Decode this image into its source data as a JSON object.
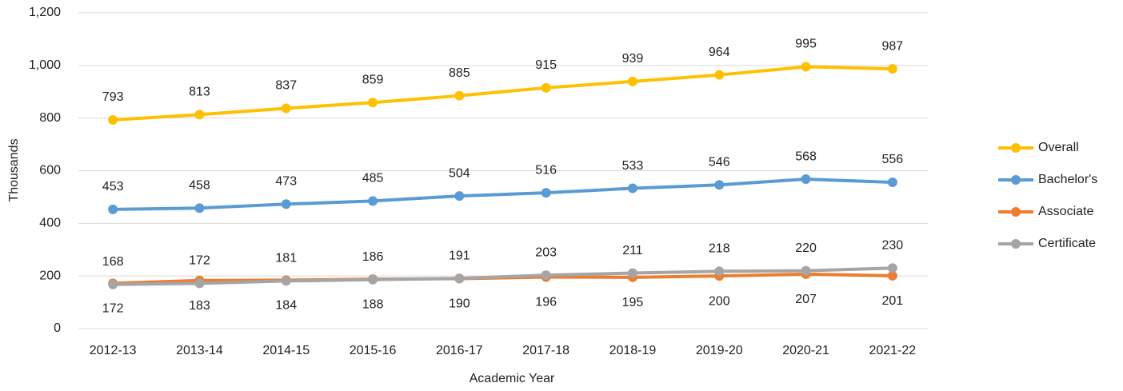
{
  "chart_data": {
    "type": "line",
    "x_label": "Academic Year",
    "y_label": "Thousands",
    "categories": [
      "2012-13",
      "2013-14",
      "2014-15",
      "2015-16",
      "2016-17",
      "2017-18",
      "2018-19",
      "2019-20",
      "2020-21",
      "2021-22"
    ],
    "series": [
      {
        "name": "Overall",
        "color": "#FFC000",
        "values": [
          793,
          813,
          837,
          859,
          885,
          915,
          939,
          964,
          995,
          987
        ]
      },
      {
        "name": "Bachelor's",
        "color": "#5B9BD5",
        "values": [
          453,
          458,
          473,
          485,
          504,
          516,
          533,
          546,
          568,
          556
        ]
      },
      {
        "name": "Associate",
        "color": "#ED7D31",
        "values": [
          172,
          183,
          184,
          188,
          190,
          196,
          195,
          200,
          207,
          201
        ]
      },
      {
        "name": "Certificate",
        "color": "#A5A5A5",
        "values": [
          168,
          172,
          181,
          186,
          191,
          203,
          211,
          218,
          220,
          230
        ]
      }
    ],
    "ylim": [
      0,
      1200
    ],
    "yticks": [
      0,
      200,
      400,
      600,
      800,
      {
        "value": 1000,
        "label": "1,000"
      },
      {
        "value": 1200,
        "label": "1,200"
      }
    ],
    "grid": true,
    "legend": "right"
  }
}
